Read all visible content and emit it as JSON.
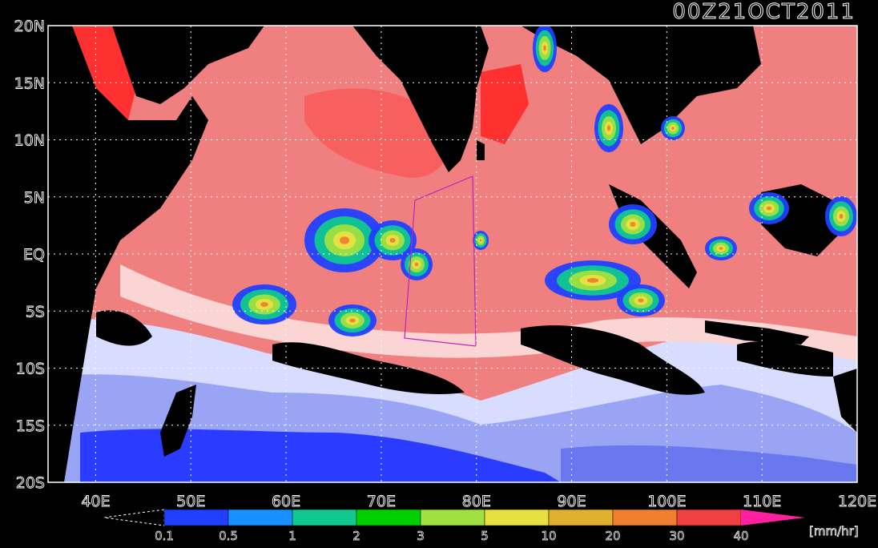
{
  "title": "00Z21OCT2011",
  "map": {
    "lon_range": [
      35,
      120
    ],
    "lat_range": [
      -20,
      20
    ],
    "x_ticks": [
      {
        "value": 40,
        "label": "40E"
      },
      {
        "value": 50,
        "label": "50E"
      },
      {
        "value": 60,
        "label": "60E"
      },
      {
        "value": 70,
        "label": "70E"
      },
      {
        "value": 80,
        "label": "80E"
      },
      {
        "value": 90,
        "label": "90E"
      },
      {
        "value": 100,
        "label": "100E"
      },
      {
        "value": 110,
        "label": "110E"
      },
      {
        "value": 120,
        "label": "120E"
      }
    ],
    "y_ticks": [
      {
        "value": 20,
        "label": "20N"
      },
      {
        "value": 15,
        "label": "15N"
      },
      {
        "value": 10,
        "label": "10N"
      },
      {
        "value": 5,
        "label": "5N"
      },
      {
        "value": 0,
        "label": "EQ"
      },
      {
        "value": -5,
        "label": "5S"
      },
      {
        "value": -10,
        "label": "10S"
      },
      {
        "value": -15,
        "label": "15S"
      },
      {
        "value": -20,
        "label": "20S"
      }
    ],
    "gridlines": true,
    "land_color": "#000000",
    "ocean_colors": {
      "warm": "#f06060",
      "warm_light": "#fbd0d0",
      "cool_light": "#d0d8ff",
      "cool": "#8090f0",
      "cold": "#2030ff"
    }
  },
  "legend": {
    "unit": "[mm/hr]",
    "labels": [
      "0.1",
      "0.5",
      "1",
      "2",
      "3",
      "5",
      "10",
      "20",
      "30",
      "40"
    ],
    "colors": [
      "#2040ff",
      "#1890ff",
      "#10c890",
      "#00d000",
      "#a0e040",
      "#e8e040",
      "#e0b030",
      "#f08030",
      "#f04040"
    ],
    "overflow_color": "#ff20a0"
  }
}
